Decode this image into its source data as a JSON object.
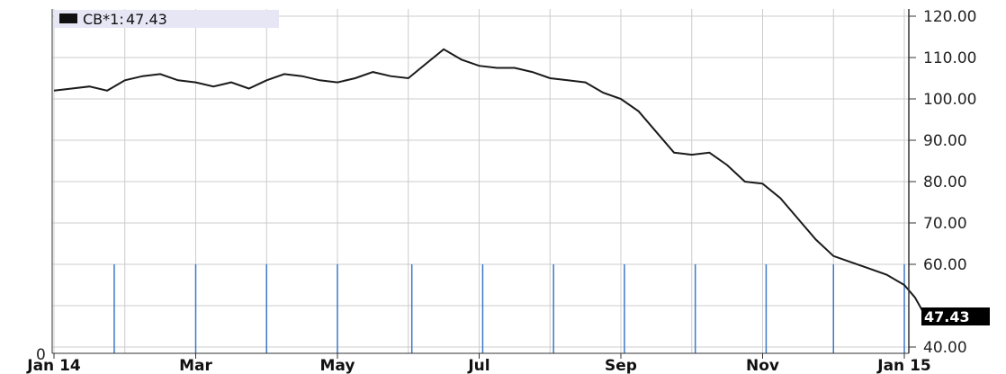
{
  "chart_data": {
    "type": "line",
    "legend": {
      "label": "CB*1:",
      "value": "47.43",
      "placement": "top-left"
    },
    "last_value_label": "47.43",
    "ylim": [
      40,
      120
    ],
    "y_ticks": [
      "120.00",
      "110.00",
      "100.00",
      "90.00",
      "80.00",
      "70.00",
      "60.00",
      "40.00"
    ],
    "volume_axis_label": "0",
    "x_ticks": [
      {
        "label": "Jan 14",
        "month": 0
      },
      {
        "label": "Mar",
        "month": 2
      },
      {
        "label": "May",
        "month": 4
      },
      {
        "label": "Jul",
        "month": 6
      },
      {
        "label": "Sep",
        "month": 8
      },
      {
        "label": "Nov",
        "month": 10
      },
      {
        "label": "Jan 15",
        "month": 12
      }
    ],
    "grid": true,
    "series": [
      {
        "x": [
          0.0,
          0.25,
          0.5,
          0.75,
          1.0,
          1.25,
          1.5,
          1.75,
          2.0,
          2.25,
          2.5,
          2.75,
          3.0,
          3.25,
          3.5,
          3.75,
          4.0,
          4.25,
          4.5,
          4.75,
          5.0,
          5.25,
          5.5,
          5.75,
          6.0,
          6.25,
          6.5,
          6.75,
          7.0,
          7.25,
          7.5,
          7.75,
          8.0,
          8.25,
          8.5,
          8.75,
          9.0,
          9.25,
          9.5,
          9.75,
          10.0,
          10.25,
          10.5,
          10.75,
          11.0,
          11.25,
          11.5,
          11.75,
          12.0,
          12.15,
          12.3
        ],
        "y": [
          102.0,
          102.5,
          103.0,
          102.0,
          104.5,
          105.5,
          106.0,
          104.5,
          104.0,
          103.0,
          104.0,
          102.5,
          104.5,
          106.0,
          105.5,
          104.5,
          104.0,
          105.0,
          106.5,
          105.5,
          105.0,
          108.5,
          112.0,
          109.5,
          108.0,
          107.5,
          107.5,
          106.5,
          105.0,
          104.5,
          104.0,
          101.5,
          100.0,
          97.0,
          92.0,
          87.0,
          86.5,
          87.0,
          84.0,
          80.0,
          79.5,
          76.0,
          71.0,
          66.0,
          62.0,
          60.5,
          59.0,
          57.5,
          55.0,
          52.0,
          47.43
        ]
      }
    ],
    "volume_bars": [
      {
        "month": 0.85,
        "value": 60
      },
      {
        "month": 2.0,
        "value": 60
      },
      {
        "month": 3.0,
        "value": 60
      },
      {
        "month": 4.0,
        "value": 60
      },
      {
        "month": 5.05,
        "value": 60
      },
      {
        "month": 6.05,
        "value": 60
      },
      {
        "month": 7.05,
        "value": 60
      },
      {
        "month": 8.05,
        "value": 60
      },
      {
        "month": 9.05,
        "value": 60
      },
      {
        "month": 10.05,
        "value": 60
      },
      {
        "month": 11.0,
        "value": 60
      },
      {
        "month": 12.0,
        "value": 60
      }
    ],
    "colors": {
      "line": "#1a1a1a",
      "volume": "#3c78c8",
      "grid": "#cccccc",
      "legend_bg": "#e6e6f5",
      "last_label_bg": "#000000"
    }
  }
}
